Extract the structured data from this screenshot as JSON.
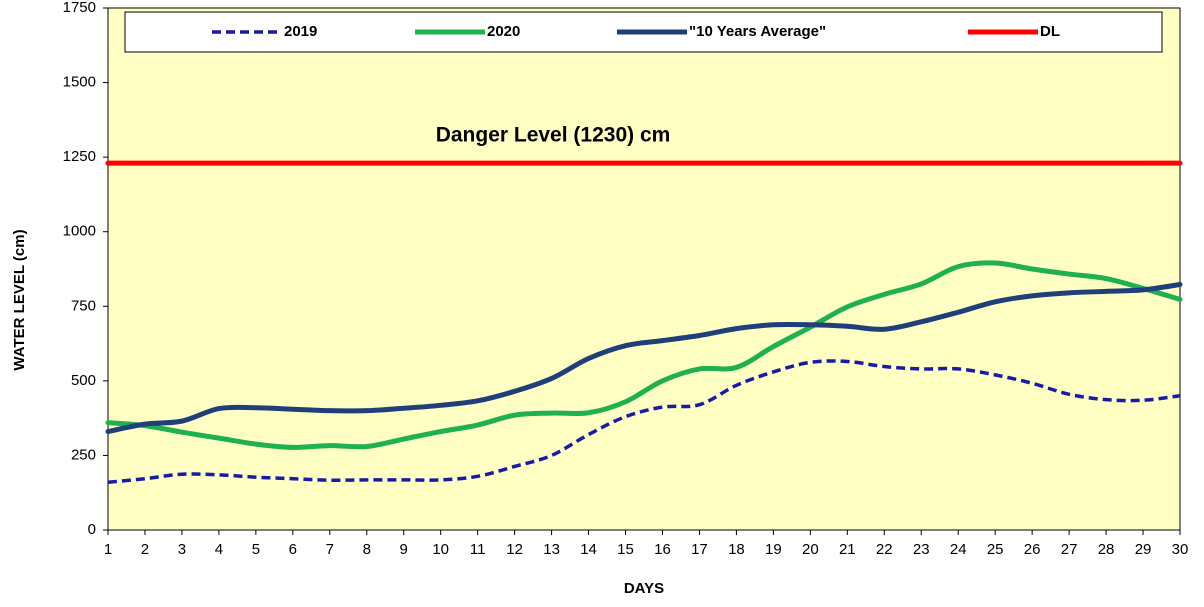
{
  "chart_data": {
    "type": "line",
    "annotation": "Danger Level (1230) cm",
    "x_label": "DAYS",
    "y_label": "WATER LEVEL (cm)",
    "x": [
      1,
      2,
      3,
      4,
      5,
      6,
      7,
      8,
      9,
      10,
      11,
      12,
      13,
      14,
      15,
      16,
      17,
      18,
      19,
      20,
      21,
      22,
      23,
      24,
      25,
      26,
      27,
      28,
      29,
      30
    ],
    "xlim": [
      1,
      30
    ],
    "xticks": [
      1,
      2,
      3,
      4,
      5,
      6,
      7,
      8,
      9,
      10,
      11,
      12,
      13,
      14,
      15,
      16,
      17,
      18,
      19,
      20,
      21,
      22,
      23,
      24,
      25,
      26,
      27,
      28,
      29,
      30
    ],
    "ylim": [
      0,
      1750
    ],
    "yticks": [
      0,
      250,
      500,
      750,
      1000,
      1250,
      1500,
      1750
    ],
    "series": [
      {
        "name": "2019",
        "color": "#1a1aa8",
        "dashed": true,
        "values": [
          160,
          172,
          187,
          185,
          177,
          172,
          167,
          168,
          168,
          168,
          180,
          213,
          250,
          320,
          380,
          412,
          420,
          485,
          530,
          562,
          565,
          548,
          540,
          540,
          520,
          492,
          455,
          437,
          435,
          450
        ]
      },
      {
        "name": "2020",
        "color": "#1fb04f",
        "dashed": false,
        "values": [
          360,
          350,
          328,
          308,
          288,
          277,
          283,
          280,
          305,
          330,
          352,
          385,
          392,
          393,
          430,
          500,
          540,
          545,
          615,
          680,
          748,
          790,
          825,
          883,
          895,
          875,
          858,
          843,
          810,
          773
        ]
      },
      {
        "name": "\"10 Years Average\"",
        "color": "#1f3f7a",
        "dashed": false,
        "values": [
          330,
          355,
          365,
          407,
          410,
          405,
          400,
          400,
          408,
          418,
          433,
          465,
          508,
          575,
          618,
          635,
          652,
          675,
          688,
          688,
          683,
          673,
          698,
          730,
          765,
          785,
          795,
          800,
          805,
          823
        ]
      },
      {
        "name": "DL",
        "color": "#ff0000",
        "dashed": false,
        "values": [
          1230,
          1230,
          1230,
          1230,
          1230,
          1230,
          1230,
          1230,
          1230,
          1230,
          1230,
          1230,
          1230,
          1230,
          1230,
          1230,
          1230,
          1230,
          1230,
          1230,
          1230,
          1230,
          1230,
          1230,
          1230,
          1230,
          1230,
          1230,
          1230,
          1230
        ]
      }
    ]
  }
}
